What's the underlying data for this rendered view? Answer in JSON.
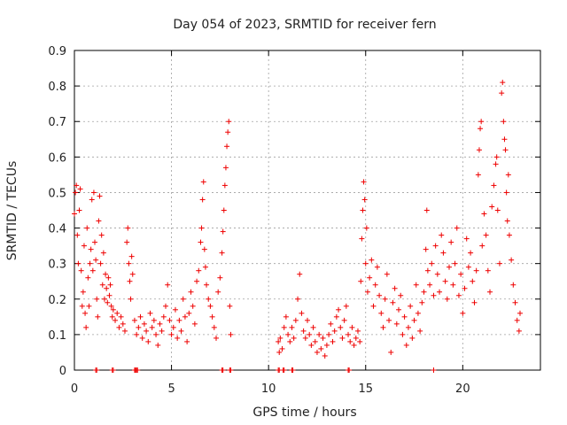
{
  "chart_data": {
    "type": "scatter",
    "title": "Day 054 of 2023, SRMTID for receiver fern",
    "xlabel": "GPS time / hours",
    "ylabel": "SRMTID / TECUs",
    "xlim": [
      0,
      24
    ],
    "ylim": [
      0,
      0.9
    ],
    "xticks": [
      0,
      5,
      10,
      15,
      20
    ],
    "yticks": [
      0,
      0.1,
      0.2,
      0.3,
      0.4,
      0.5,
      0.6,
      0.7,
      0.8,
      0.9
    ],
    "xtick_labels": [
      "0",
      "5",
      "10",
      "15",
      "20"
    ],
    "ytick_labels": [
      "0",
      "0.1",
      "0.2",
      "0.3",
      "0.4",
      "0.5",
      "0.6",
      "0.7",
      "0.8",
      "0.9"
    ],
    "grid": true,
    "marker": "+",
    "color": "#ee0000",
    "series": [
      {
        "name": "SRMTID",
        "points": [
          [
            0.0,
            0.44
          ],
          [
            0.05,
            0.5
          ],
          [
            0.1,
            0.52
          ],
          [
            0.15,
            0.38
          ],
          [
            0.2,
            0.3
          ],
          [
            0.25,
            0.45
          ],
          [
            0.3,
            0.51
          ],
          [
            0.35,
            0.28
          ],
          [
            0.4,
            0.18
          ],
          [
            0.45,
            0.22
          ],
          [
            0.5,
            0.35
          ],
          [
            0.55,
            0.16
          ],
          [
            0.6,
            0.12
          ],
          [
            0.65,
            0.4
          ],
          [
            0.7,
            0.26
          ],
          [
            0.75,
            0.18
          ],
          [
            0.8,
            0.3
          ],
          [
            0.85,
            0.34
          ],
          [
            0.9,
            0.48
          ],
          [
            0.95,
            0.28
          ],
          [
            1.0,
            0.5
          ],
          [
            1.05,
            0.36
          ],
          [
            1.1,
            0.31
          ],
          [
            1.15,
            0.2
          ],
          [
            1.2,
            0.15
          ],
          [
            1.25,
            0.42
          ],
          [
            1.3,
            0.49
          ],
          [
            1.35,
            0.3
          ],
          [
            1.4,
            0.38
          ],
          [
            1.45,
            0.24
          ],
          [
            1.5,
            0.33
          ],
          [
            1.55,
            0.2
          ],
          [
            1.6,
            0.27
          ],
          [
            1.65,
            0.23
          ],
          [
            1.7,
            0.19
          ],
          [
            1.75,
            0.26
          ],
          [
            1.8,
            0.21
          ],
          [
            1.85,
            0.24
          ],
          [
            1.9,
            0.18
          ],
          [
            1.95,
            0.15
          ],
          [
            2.0,
            0.17
          ],
          [
            2.1,
            0.14
          ],
          [
            2.2,
            0.16
          ],
          [
            2.3,
            0.12
          ],
          [
            2.4,
            0.15
          ],
          [
            2.5,
            0.13
          ],
          [
            2.6,
            0.11
          ],
          [
            2.7,
            0.36
          ],
          [
            2.75,
            0.4
          ],
          [
            2.8,
            0.3
          ],
          [
            2.85,
            0.25
          ],
          [
            2.9,
            0.2
          ],
          [
            2.95,
            0.32
          ],
          [
            3.0,
            0.27
          ],
          [
            3.1,
            0.14
          ],
          [
            3.2,
            0.1
          ],
          [
            3.3,
            0.12
          ],
          [
            3.4,
            0.15
          ],
          [
            3.5,
            0.09
          ],
          [
            3.6,
            0.13
          ],
          [
            3.7,
            0.11
          ],
          [
            3.8,
            0.08
          ],
          [
            3.9,
            0.16
          ],
          [
            4.0,
            0.12
          ],
          [
            4.1,
            0.14
          ],
          [
            4.2,
            0.1
          ],
          [
            4.3,
            0.07
          ],
          [
            4.4,
            0.13
          ],
          [
            4.5,
            0.11
          ],
          [
            4.6,
            0.15
          ],
          [
            4.7,
            0.18
          ],
          [
            4.8,
            0.24
          ],
          [
            4.9,
            0.14
          ],
          [
            5.0,
            0.1
          ],
          [
            5.1,
            0.12
          ],
          [
            5.2,
            0.17
          ],
          [
            5.3,
            0.09
          ],
          [
            5.4,
            0.14
          ],
          [
            5.5,
            0.11
          ],
          [
            5.6,
            0.2
          ],
          [
            5.7,
            0.15
          ],
          [
            5.8,
            0.08
          ],
          [
            5.9,
            0.16
          ],
          [
            6.0,
            0.22
          ],
          [
            6.1,
            0.18
          ],
          [
            6.2,
            0.13
          ],
          [
            6.3,
            0.25
          ],
          [
            6.4,
            0.28
          ],
          [
            6.5,
            0.36
          ],
          [
            6.55,
            0.4
          ],
          [
            6.6,
            0.48
          ],
          [
            6.65,
            0.53
          ],
          [
            6.7,
            0.34
          ],
          [
            6.75,
            0.29
          ],
          [
            6.8,
            0.24
          ],
          [
            6.9,
            0.2
          ],
          [
            7.0,
            0.18
          ],
          [
            7.1,
            0.15
          ],
          [
            7.2,
            0.12
          ],
          [
            7.3,
            0.09
          ],
          [
            7.4,
            0.22
          ],
          [
            7.5,
            0.26
          ],
          [
            7.6,
            0.33
          ],
          [
            7.65,
            0.39
          ],
          [
            7.7,
            0.45
          ],
          [
            7.75,
            0.52
          ],
          [
            7.8,
            0.57
          ],
          [
            7.85,
            0.63
          ],
          [
            7.9,
            0.67
          ],
          [
            7.95,
            0.7
          ],
          [
            8.0,
            0.18
          ],
          [
            8.05,
            0.1
          ],
          [
            10.5,
            0.08
          ],
          [
            10.55,
            0.05
          ],
          [
            10.6,
            0.09
          ],
          [
            10.7,
            0.06
          ],
          [
            10.8,
            0.12
          ],
          [
            10.9,
            0.15
          ],
          [
            11.0,
            0.1
          ],
          [
            11.1,
            0.08
          ],
          [
            11.2,
            0.12
          ],
          [
            11.3,
            0.09
          ],
          [
            11.4,
            0.14
          ],
          [
            11.5,
            0.2
          ],
          [
            11.6,
            0.27
          ],
          [
            11.7,
            0.16
          ],
          [
            11.8,
            0.11
          ],
          [
            11.9,
            0.09
          ],
          [
            12.0,
            0.14
          ],
          [
            12.1,
            0.1
          ],
          [
            12.2,
            0.07
          ],
          [
            12.3,
            0.12
          ],
          [
            12.4,
            0.08
          ],
          [
            12.5,
            0.05
          ],
          [
            12.6,
            0.1
          ],
          [
            12.7,
            0.06
          ],
          [
            12.8,
            0.09
          ],
          [
            12.9,
            0.04
          ],
          [
            13.0,
            0.07
          ],
          [
            13.1,
            0.1
          ],
          [
            13.2,
            0.13
          ],
          [
            13.3,
            0.08
          ],
          [
            13.4,
            0.11
          ],
          [
            13.5,
            0.15
          ],
          [
            13.6,
            0.17
          ],
          [
            13.7,
            0.12
          ],
          [
            13.8,
            0.09
          ],
          [
            13.9,
            0.14
          ],
          [
            14.0,
            0.18
          ],
          [
            14.1,
            0.1
          ],
          [
            14.2,
            0.08
          ],
          [
            14.3,
            0.12
          ],
          [
            14.4,
            0.07
          ],
          [
            14.5,
            0.09
          ],
          [
            14.6,
            0.11
          ],
          [
            14.7,
            0.08
          ],
          [
            14.75,
            0.25
          ],
          [
            14.8,
            0.37
          ],
          [
            14.85,
            0.45
          ],
          [
            14.9,
            0.53
          ],
          [
            14.95,
            0.48
          ],
          [
            15.0,
            0.3
          ],
          [
            15.05,
            0.4
          ],
          [
            15.1,
            0.22
          ],
          [
            15.2,
            0.26
          ],
          [
            15.3,
            0.31
          ],
          [
            15.4,
            0.18
          ],
          [
            15.5,
            0.24
          ],
          [
            15.6,
            0.29
          ],
          [
            15.7,
            0.21
          ],
          [
            15.8,
            0.16
          ],
          [
            15.9,
            0.12
          ],
          [
            16.0,
            0.2
          ],
          [
            16.1,
            0.27
          ],
          [
            16.2,
            0.14
          ],
          [
            16.3,
            0.05
          ],
          [
            16.4,
            0.19
          ],
          [
            16.5,
            0.23
          ],
          [
            16.6,
            0.13
          ],
          [
            16.7,
            0.17
          ],
          [
            16.8,
            0.21
          ],
          [
            16.9,
            0.1
          ],
          [
            17.0,
            0.15
          ],
          [
            17.1,
            0.07
          ],
          [
            17.2,
            0.12
          ],
          [
            17.3,
            0.18
          ],
          [
            17.4,
            0.09
          ],
          [
            17.5,
            0.14
          ],
          [
            17.6,
            0.24
          ],
          [
            17.7,
            0.16
          ],
          [
            17.8,
            0.11
          ],
          [
            17.9,
            0.19
          ],
          [
            18.0,
            0.22
          ],
          [
            18.1,
            0.34
          ],
          [
            18.15,
            0.45
          ],
          [
            18.2,
            0.28
          ],
          [
            18.3,
            0.24
          ],
          [
            18.4,
            0.3
          ],
          [
            18.5,
            0.21
          ],
          [
            18.6,
            0.35
          ],
          [
            18.7,
            0.27
          ],
          [
            18.8,
            0.22
          ],
          [
            18.9,
            0.38
          ],
          [
            19.0,
            0.33
          ],
          [
            19.1,
            0.25
          ],
          [
            19.2,
            0.2
          ],
          [
            19.3,
            0.29
          ],
          [
            19.4,
            0.36
          ],
          [
            19.5,
            0.24
          ],
          [
            19.6,
            0.3
          ],
          [
            19.7,
            0.4
          ],
          [
            19.8,
            0.21
          ],
          [
            19.9,
            0.27
          ],
          [
            20.0,
            0.16
          ],
          [
            20.1,
            0.23
          ],
          [
            20.2,
            0.37
          ],
          [
            20.3,
            0.29
          ],
          [
            20.4,
            0.33
          ],
          [
            20.5,
            0.25
          ],
          [
            20.6,
            0.19
          ],
          [
            20.7,
            0.28
          ],
          [
            20.8,
            0.55
          ],
          [
            20.85,
            0.62
          ],
          [
            20.9,
            0.68
          ],
          [
            20.95,
            0.7
          ],
          [
            21.0,
            0.35
          ],
          [
            21.1,
            0.44
          ],
          [
            21.2,
            0.38
          ],
          [
            21.3,
            0.28
          ],
          [
            21.4,
            0.22
          ],
          [
            21.5,
            0.46
          ],
          [
            21.6,
            0.52
          ],
          [
            21.7,
            0.58
          ],
          [
            21.75,
            0.6
          ],
          [
            21.8,
            0.45
          ],
          [
            21.9,
            0.3
          ],
          [
            22.0,
            0.78
          ],
          [
            22.05,
            0.81
          ],
          [
            22.1,
            0.7
          ],
          [
            22.15,
            0.65
          ],
          [
            22.2,
            0.62
          ],
          [
            22.25,
            0.5
          ],
          [
            22.3,
            0.42
          ],
          [
            22.35,
            0.55
          ],
          [
            22.4,
            0.38
          ],
          [
            22.5,
            0.31
          ],
          [
            22.6,
            0.24
          ],
          [
            22.7,
            0.19
          ],
          [
            22.8,
            0.14
          ],
          [
            22.9,
            0.11
          ],
          [
            22.95,
            0.16
          ]
        ]
      }
    ],
    "zero_points_x": [
      1.1,
      1.15,
      1.95,
      2.0,
      3.1,
      3.15,
      3.2,
      3.25,
      7.6,
      7.65,
      8.0,
      8.05,
      10.5,
      10.55,
      10.75,
      10.8,
      11.2,
      11.25,
      14.1,
      14.15,
      18.5
    ]
  }
}
